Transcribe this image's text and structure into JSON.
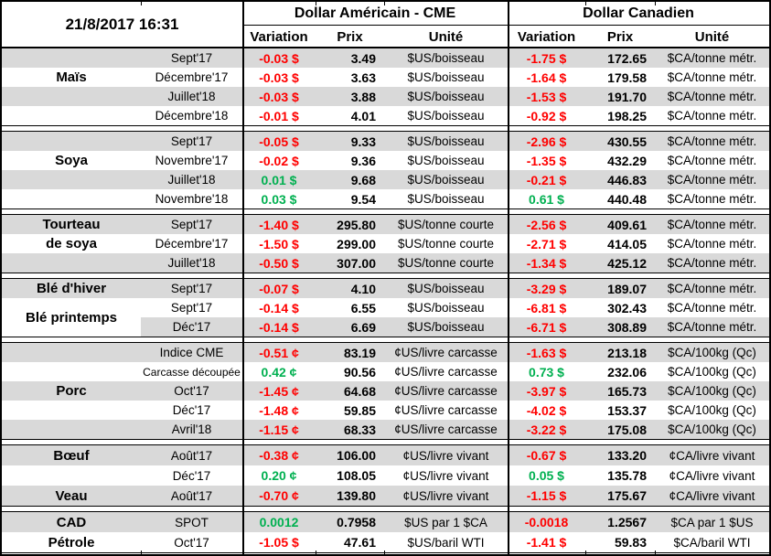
{
  "header": {
    "timestamp": "21/8/2017 16:31",
    "us_group": "Dollar Américain - CME",
    "ca_group": "Dollar Canadien",
    "col_variation": "Variation",
    "col_price": "Prix",
    "col_unit": "Unité"
  },
  "colors": {
    "negative": "#FF0000",
    "positive": "#00B050",
    "row_shade": "#D9D9D9"
  },
  "sections": [
    {
      "name": "mais",
      "labels": [
        {
          "text": "Maïs",
          "row": 1
        }
      ],
      "rows": [
        {
          "term": "Sept'17",
          "us": {
            "var": "-0.03 $",
            "price": "3.49",
            "unit": "$US/boisseau"
          },
          "ca": {
            "var": "-1.75 $",
            "price": "172.65",
            "unit": "$CA/tonne métr."
          }
        },
        {
          "term": "Décembre'17",
          "us": {
            "var": "-0.03 $",
            "price": "3.63",
            "unit": "$US/boisseau"
          },
          "ca": {
            "var": "-1.64 $",
            "price": "179.58",
            "unit": "$CA/tonne métr."
          }
        },
        {
          "term": "Juillet'18",
          "us": {
            "var": "-0.03 $",
            "price": "3.88",
            "unit": "$US/boisseau"
          },
          "ca": {
            "var": "-1.53 $",
            "price": "191.70",
            "unit": "$CA/tonne métr."
          }
        },
        {
          "term": "Décembre'18",
          "us": {
            "var": "-0.01 $",
            "price": "4.01",
            "unit": "$US/boisseau"
          },
          "ca": {
            "var": "-0.92 $",
            "price": "198.25",
            "unit": "$CA/tonne métr."
          }
        }
      ]
    },
    {
      "name": "soya",
      "labels": [
        {
          "text": "Soya",
          "row": 1
        }
      ],
      "rows": [
        {
          "term": "Sept'17",
          "us": {
            "var": "-0.05 $",
            "price": "9.33",
            "unit": "$US/boisseau"
          },
          "ca": {
            "var": "-2.96 $",
            "price": "430.55",
            "unit": "$CA/tonne métr."
          }
        },
        {
          "term": "Novembre'17",
          "us": {
            "var": "-0.02 $",
            "price": "9.36",
            "unit": "$US/boisseau"
          },
          "ca": {
            "var": "-1.35 $",
            "price": "432.29",
            "unit": "$CA/tonne métr."
          }
        },
        {
          "term": "Juillet'18",
          "us": {
            "var": "0.01 $",
            "price": "9.68",
            "unit": "$US/boisseau"
          },
          "ca": {
            "var": "-0.21 $",
            "price": "446.83",
            "unit": "$CA/tonne métr."
          }
        },
        {
          "term": "Novembre'18",
          "us": {
            "var": "0.03 $",
            "price": "9.54",
            "unit": "$US/boisseau"
          },
          "ca": {
            "var": "0.61 $",
            "price": "440.48",
            "unit": "$CA/tonne métr."
          }
        }
      ]
    },
    {
      "name": "tourteau-de-soya",
      "labels": [
        {
          "text": "Tourteau",
          "row": 0
        },
        {
          "text": "de soya",
          "row": 1
        }
      ],
      "rows": [
        {
          "term": "Sept'17",
          "us": {
            "var": "-1.40 $",
            "price": "295.80",
            "unit": "$US/tonne courte"
          },
          "ca": {
            "var": "-2.56 $",
            "price": "409.61",
            "unit": "$CA/tonne métr."
          }
        },
        {
          "term": "Décembre'17",
          "us": {
            "var": "-1.50 $",
            "price": "299.00",
            "unit": "$US/tonne courte"
          },
          "ca": {
            "var": "-2.71 $",
            "price": "414.05",
            "unit": "$CA/tonne métr."
          }
        },
        {
          "term": "Juillet'18",
          "us": {
            "var": "-0.50 $",
            "price": "307.00",
            "unit": "$US/tonne courte"
          },
          "ca": {
            "var": "-1.34 $",
            "price": "425.12",
            "unit": "$CA/tonne métr."
          }
        }
      ]
    },
    {
      "name": "ble",
      "labels": [
        {
          "text": "Blé d'hiver",
          "row": 0
        },
        {
          "text": "Blé printemps",
          "row": 1,
          "span": 2,
          "bg": "#FFFFFF"
        }
      ],
      "rows": [
        {
          "term": "Sept'17",
          "us": {
            "var": "-0.07 $",
            "price": "4.10",
            "unit": "$US/boisseau"
          },
          "ca": {
            "var": "-3.29 $",
            "price": "189.07",
            "unit": "$CA/tonne métr."
          }
        },
        {
          "term": "Sept'17",
          "us": {
            "var": "-0.14 $",
            "price": "6.55",
            "unit": "$US/boisseau"
          },
          "ca": {
            "var": "-6.81 $",
            "price": "302.43",
            "unit": "$CA/tonne métr."
          }
        },
        {
          "term": "Déc'17",
          "us": {
            "var": "-0.14 $",
            "price": "6.69",
            "unit": "$US/boisseau"
          },
          "ca": {
            "var": "-6.71 $",
            "price": "308.89",
            "unit": "$CA/tonne métr."
          }
        }
      ]
    },
    {
      "name": "porc",
      "labels": [
        {
          "text": "Porc",
          "row": 2
        }
      ],
      "rows": [
        {
          "term": "Indice CME",
          "us": {
            "var": "-0.51 ¢",
            "price": "83.19",
            "unit": "¢US/livre carcasse"
          },
          "ca": {
            "var": "-1.63 $",
            "price": "213.18",
            "unit": "$CA/100kg (Qc)"
          }
        },
        {
          "term": "Carcasse découpée",
          "small_term": true,
          "us": {
            "var": "0.42 ¢",
            "price": "90.56",
            "unit": "¢US/livre carcasse"
          },
          "ca": {
            "var": "0.73 $",
            "price": "232.06",
            "unit": "$CA/100kg (Qc)"
          }
        },
        {
          "term": "Oct'17",
          "us": {
            "var": "-1.45 ¢",
            "price": "64.68",
            "unit": "¢US/livre carcasse"
          },
          "ca": {
            "var": "-3.97 $",
            "price": "165.73",
            "unit": "$CA/100kg (Qc)"
          }
        },
        {
          "term": "Déc'17",
          "us": {
            "var": "-1.48 ¢",
            "price": "59.85",
            "unit": "¢US/livre carcasse"
          },
          "ca": {
            "var": "-4.02 $",
            "price": "153.37",
            "unit": "$CA/100kg (Qc)"
          }
        },
        {
          "term": "Avril'18",
          "us": {
            "var": "-1.15 ¢",
            "price": "68.33",
            "unit": "¢US/livre carcasse"
          },
          "ca": {
            "var": "-3.22 $",
            "price": "175.08",
            "unit": "$CA/100kg (Qc)"
          }
        }
      ]
    },
    {
      "name": "boeuf-veau",
      "labels": [
        {
          "text": "Bœuf",
          "row": 0
        },
        {
          "text": "Veau",
          "row": 2
        }
      ],
      "rows": [
        {
          "term": "Août'17",
          "us": {
            "var": "-0.38 ¢",
            "price": "106.00",
            "unit": "¢US/livre vivant"
          },
          "ca": {
            "var": "-0.67 $",
            "price": "133.20",
            "unit": "¢CA/livre vivant"
          }
        },
        {
          "term": "Déc'17",
          "us": {
            "var": "0.20 ¢",
            "price": "108.05",
            "unit": "¢US/livre vivant"
          },
          "ca": {
            "var": "0.05 $",
            "price": "135.78",
            "unit": "¢CA/livre vivant"
          }
        },
        {
          "term": "Août'17",
          "us": {
            "var": "-0.70 ¢",
            "price": "139.80",
            "unit": "¢US/livre vivant"
          },
          "ca": {
            "var": "-1.15 $",
            "price": "175.67",
            "unit": "¢CA/livre vivant"
          }
        }
      ]
    },
    {
      "name": "cad-petrole",
      "labels": [
        {
          "text": "CAD",
          "row": 0
        },
        {
          "text": "Pétrole",
          "row": 1
        }
      ],
      "rows": [
        {
          "term": "SPOT",
          "us": {
            "var": "0.0012",
            "price": "0.7958",
            "unit": "$US par 1 $CA"
          },
          "ca": {
            "var": "-0.0018",
            "price": "1.2567",
            "unit": "$CA par 1 $US"
          }
        },
        {
          "term": "Oct'17",
          "us": {
            "var": "-1.05 $",
            "price": "47.61",
            "unit": "$US/baril WTI"
          },
          "ca": {
            "var": "-1.41 $",
            "price": "59.83",
            "unit": "$CA/baril WTI"
          }
        }
      ]
    }
  ]
}
